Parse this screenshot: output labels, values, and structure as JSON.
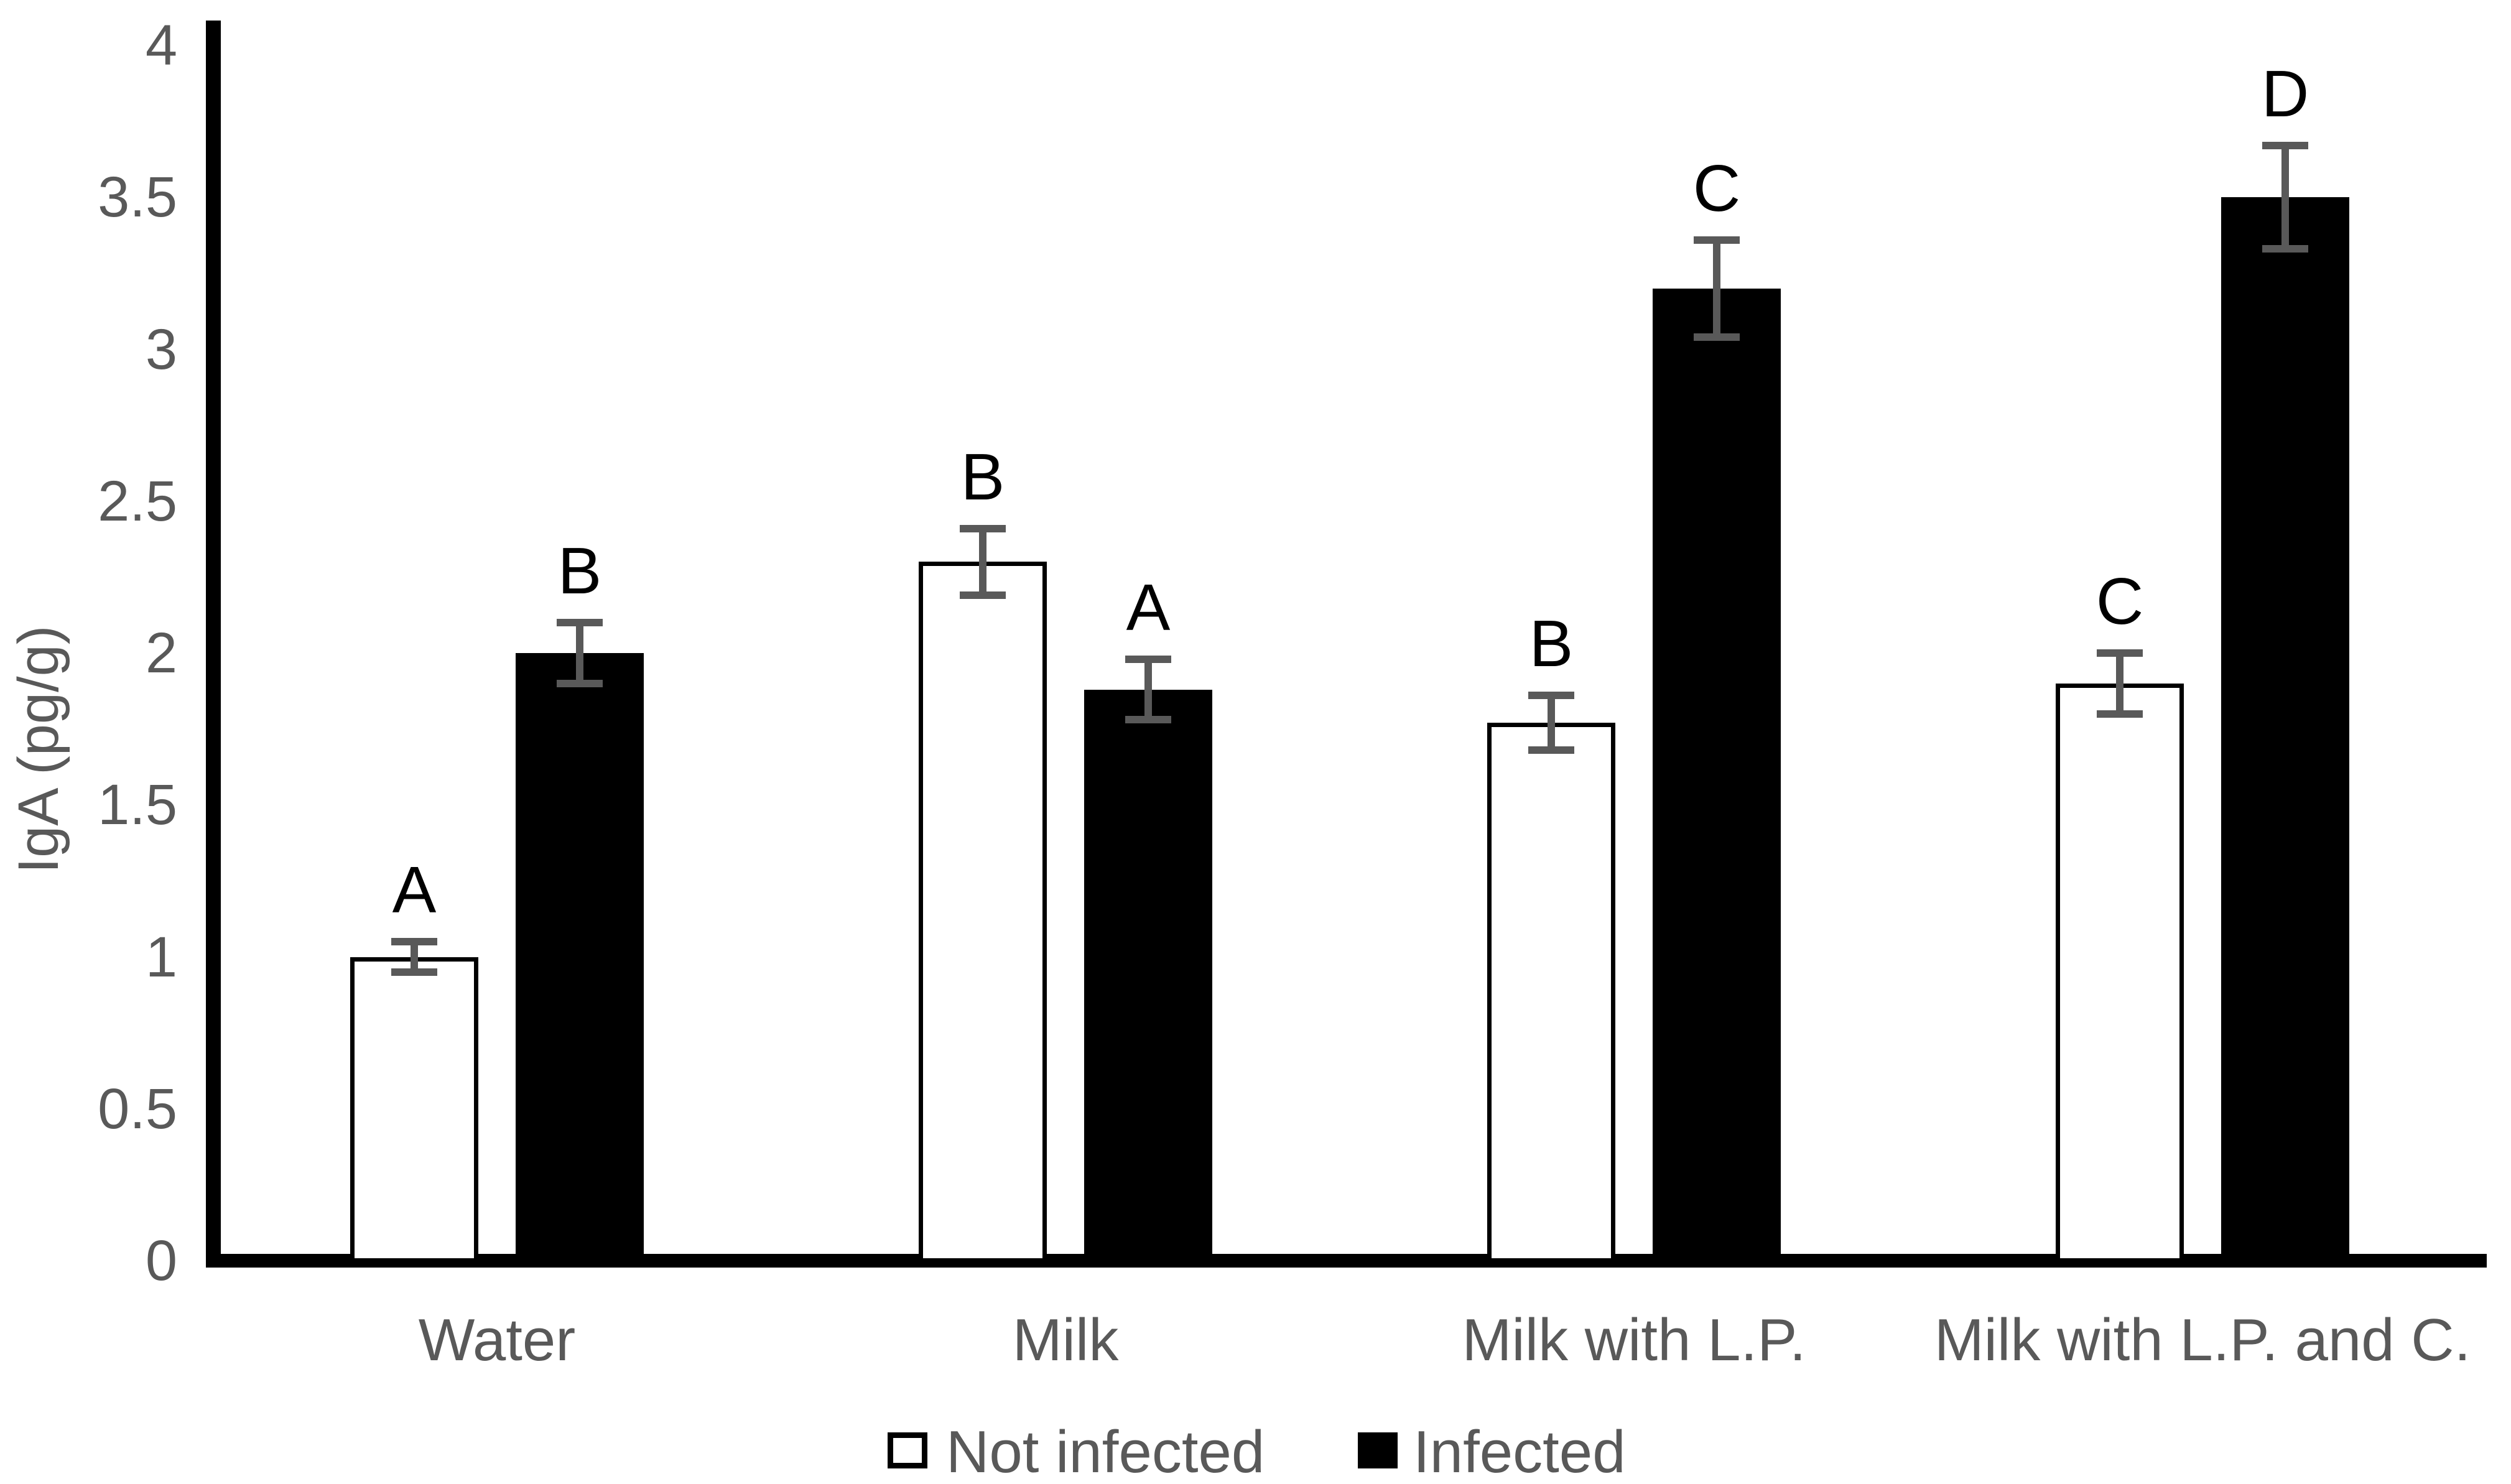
{
  "chart_data": {
    "type": "bar",
    "title": "",
    "xlabel": "",
    "ylabel": "IgA (pg/g)",
    "ylim": [
      0,
      4
    ],
    "ytick_step": 0.5,
    "ytick_labels": [
      "0",
      "0.5",
      "1",
      "1.5",
      "2",
      "2.5",
      "3",
      "3.5",
      "4"
    ],
    "grid": false,
    "legend_position": "bottom",
    "categories": [
      "Water",
      "Milk",
      "Milk with L.P.",
      "Milk with L.P. and C."
    ],
    "series": [
      {
        "name": "Not infected",
        "swatch": "white-outlined",
        "values": [
          1.0,
          2.3,
          1.77,
          1.9
        ],
        "errors": [
          0.05,
          0.11,
          0.09,
          0.1
        ],
        "letters": [
          "A",
          "B",
          "B",
          "C"
        ]
      },
      {
        "name": "Infected",
        "swatch": "black-filled",
        "values": [
          2.0,
          1.88,
          3.2,
          3.5
        ],
        "errors": [
          0.1,
          0.1,
          0.16,
          0.17
        ],
        "letters": [
          "B",
          "A",
          "C",
          "D"
        ]
      }
    ],
    "colors": {
      "background": "#ffffff",
      "axis": "#000000",
      "bar_not_infected_fill": "#ffffff",
      "bar_infected_fill": "#000000",
      "bar_border": "#000000",
      "error_bar": "#595959",
      "tick_text": "#595959",
      "category_text": "#595959",
      "legend_text": "#595959",
      "letter_text": "#000000"
    }
  }
}
